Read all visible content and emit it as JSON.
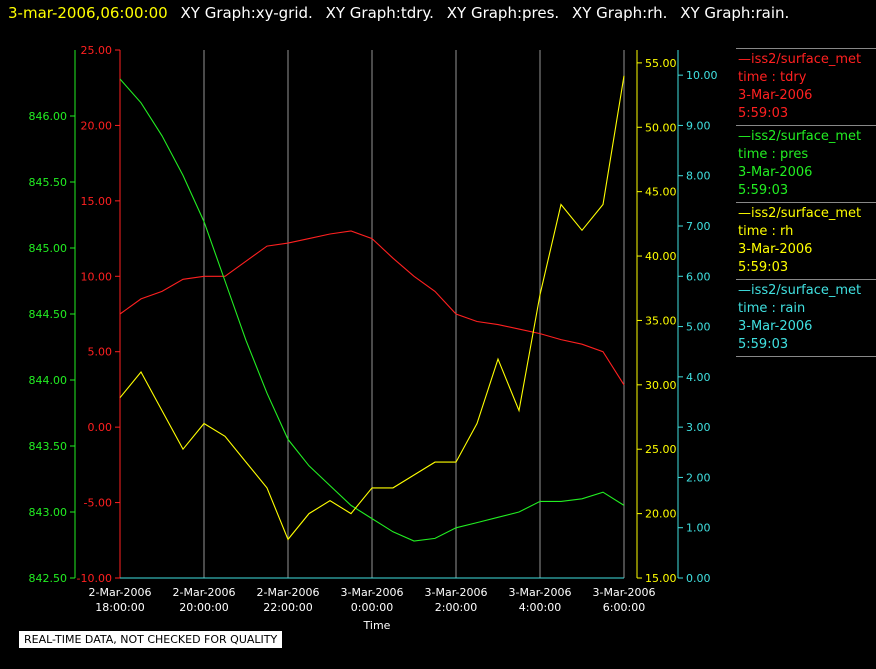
{
  "header": {
    "timestamp": "3-mar-2006,06:00:00",
    "graphs": [
      "XY Graph:xy-grid.",
      "XY Graph:tdry.",
      "XY Graph:pres.",
      "XY Graph:rh.",
      "XY Graph:rain."
    ]
  },
  "footer": {
    "quality_note": "REAL-TIME DATA, NOT CHECKED FOR QUALITY"
  },
  "colors": {
    "tdry": "#ff2020",
    "pres": "#22ee22",
    "rh": "#ffff00",
    "rain": "#40e0e0",
    "grid": "#bbbbbb"
  },
  "legend": [
    {
      "source": "—iss2/surface_met",
      "field": "time : tdry",
      "date": "3-Mar-2006",
      "time": "5:59:03",
      "color": "#ff2020"
    },
    {
      "source": "—iss2/surface_met",
      "field": "time : pres",
      "date": "3-Mar-2006",
      "time": "5:59:03",
      "color": "#22ee22"
    },
    {
      "source": "—iss2/surface_met",
      "field": "time : rh",
      "date": "3-Mar-2006",
      "time": "5:59:03",
      "color": "#ffff00"
    },
    {
      "source": "—iss2/surface_met",
      "field": "time : rain",
      "date": "3-Mar-2006",
      "time": "5:59:03",
      "color": "#40e0e0"
    }
  ],
  "chart_data": {
    "type": "line",
    "xlabel": "Time",
    "x_ticks": [
      {
        "line1": "2-Mar-2006",
        "line2": "18:00:00"
      },
      {
        "line1": "2-Mar-2006",
        "line2": "20:00:00"
      },
      {
        "line1": "2-Mar-2006",
        "line2": "22:00:00"
      },
      {
        "line1": "3-Mar-2006",
        "line2": "0:00:00"
      },
      {
        "line1": "3-Mar-2006",
        "line2": "2:00:00"
      },
      {
        "line1": "3-Mar-2006",
        "line2": "4:00:00"
      },
      {
        "line1": "3-Mar-2006",
        "line2": "6:00:00"
      }
    ],
    "x_hours_range": [
      0,
      12
    ],
    "grid": true,
    "legend_position": "right",
    "axes": {
      "pres": {
        "ticks": [
          "842.50",
          "843.00",
          "843.50",
          "844.00",
          "844.50",
          "845.00",
          "845.50",
          "846.00"
        ],
        "range": [
          842.5,
          846.5
        ]
      },
      "tdry": {
        "ticks": [
          "-10.00",
          "-5.00",
          "0.00",
          "5.00",
          "10.00",
          "15.00",
          "20.00",
          "25.00"
        ],
        "range": [
          -10,
          25
        ]
      },
      "rh": {
        "ticks": [
          "15.00",
          "20.00",
          "25.00",
          "30.00",
          "35.00",
          "40.00",
          "45.00",
          "50.00",
          "55.00"
        ],
        "range": [
          15,
          56
        ]
      },
      "rain": {
        "ticks": [
          "0.00",
          "1.00",
          "2.00",
          "3.00",
          "4.00",
          "5.00",
          "6.00",
          "7.00",
          "8.00",
          "9.00",
          "10.00"
        ],
        "range": [
          0,
          10.5
        ]
      }
    },
    "series": [
      {
        "name": "tdry",
        "axis": "tdry",
        "x": [
          0,
          0.5,
          1,
          1.5,
          2,
          2.5,
          3,
          3.5,
          4,
          4.5,
          5,
          5.5,
          6,
          6.5,
          7,
          7.5,
          8,
          8.5,
          9,
          9.5,
          10,
          10.5,
          11,
          11.5,
          12
        ],
        "y": [
          7.5,
          8.5,
          9.0,
          9.8,
          10.0,
          10.0,
          11.0,
          12.0,
          12.2,
          12.5,
          12.8,
          13.0,
          12.5,
          11.2,
          10.0,
          9.0,
          7.5,
          7.0,
          6.8,
          6.5,
          6.2,
          5.8,
          5.5,
          5.0,
          2.8
        ]
      },
      {
        "name": "pres",
        "axis": "pres",
        "x": [
          0,
          0.5,
          1,
          1.5,
          2,
          2.5,
          3,
          3.5,
          4,
          4.5,
          5,
          5.5,
          6,
          6.5,
          7,
          7.5,
          8,
          8.5,
          9,
          9.5,
          10,
          10.5,
          11,
          11.5,
          12
        ],
        "y": [
          846.28,
          846.1,
          845.85,
          845.55,
          845.2,
          844.75,
          844.3,
          843.9,
          843.55,
          843.35,
          843.2,
          843.05,
          842.95,
          842.85,
          842.78,
          842.8,
          842.88,
          842.92,
          842.96,
          843.0,
          843.08,
          843.08,
          843.1,
          843.15,
          843.05
        ]
      },
      {
        "name": "rh",
        "axis": "rh",
        "x": [
          0,
          0.5,
          1,
          1.5,
          2,
          2.5,
          3,
          3.5,
          4,
          4.5,
          5,
          5.5,
          6,
          6.5,
          7,
          7.5,
          8,
          8.5,
          9,
          9.5,
          10,
          10.5,
          11,
          11.5,
          12
        ],
        "y": [
          29,
          31,
          28,
          25,
          27,
          26,
          24,
          22,
          18,
          20,
          21,
          20,
          22,
          22,
          23,
          24,
          24,
          27,
          32,
          28,
          37,
          44,
          42,
          44,
          54
        ]
      },
      {
        "name": "rain",
        "axis": "rain",
        "x": [
          0,
          12
        ],
        "y": [
          0,
          0
        ]
      }
    ]
  }
}
